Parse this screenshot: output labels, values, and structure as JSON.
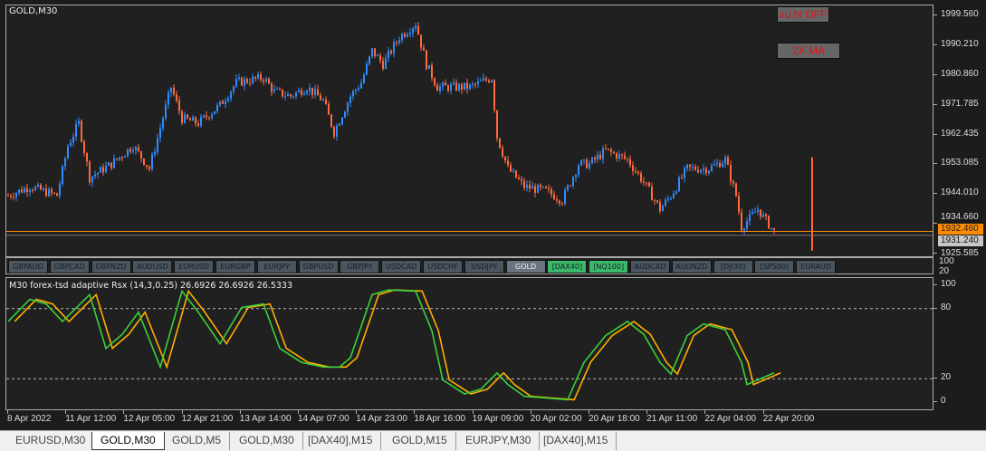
{
  "window": {
    "symbol_label": "GOLD,M30"
  },
  "controls": {
    "hl_button": "xu hl OFF",
    "ma_button": "2X MA"
  },
  "price_axis": {
    "labels": [
      "1999.560",
      "1990.210",
      "1980.860",
      "1971.785",
      "1962.435",
      "1953.085",
      "1944.010",
      "1934.660",
      "1925.585"
    ],
    "current_price": "1931.240",
    "ask_partial": "1932.460"
  },
  "symbol_buttons": [
    {
      "label": "GBPAUD",
      "active": false
    },
    {
      "label": "GBPCAD",
      "active": false
    },
    {
      "label": "GBPNZD",
      "active": false
    },
    {
      "label": "AUDUSD",
      "active": false
    },
    {
      "label": "EURUSD",
      "active": false
    },
    {
      "label": "EURGBP",
      "active": false
    },
    {
      "label": "EURJPY",
      "active": false
    },
    {
      "label": "GBPUSD",
      "active": false
    },
    {
      "label": "GBPJPY",
      "active": false
    },
    {
      "label": "USDCAD",
      "active": false
    },
    {
      "label": "USDCHF",
      "active": false
    },
    {
      "label": "USDJPY",
      "active": false
    },
    {
      "label": "GOLD",
      "active": "current"
    },
    {
      "label": "[DAX40]",
      "active": true
    },
    {
      "label": "[NQ100]",
      "active": true
    },
    {
      "label": "AUDCAD",
      "active": false
    },
    {
      "label": "AUDNZD",
      "active": false
    },
    {
      "label": "[DJI30]",
      "active": false
    },
    {
      "label": "[SP500]",
      "active": false
    },
    {
      "label": "EURAUD",
      "active": false
    }
  ],
  "button_panel_axis": {
    "top": "100",
    "bottom": "20"
  },
  "indicator": {
    "label": "M30 forex-tsd adaptive Rsx (14,3,0.25) 26.6926 26.6926 26.5333",
    "axis_labels": [
      "100",
      "80",
      "20",
      "0"
    ],
    "levels": [
      80,
      20
    ]
  },
  "time_axis": [
    "8 Apr 2022",
    "11 Apr 12:00",
    "12 Apr 05:00",
    "12 Apr 21:00",
    "13 Apr 14:00",
    "14 Apr 07:00",
    "14 Apr 23:00",
    "18 Apr 16:00",
    "19 Apr 09:00",
    "20 Apr 02:00",
    "20 Apr 18:00",
    "21 Apr 11:00",
    "22 Apr 04:00",
    "22 Apr 20:00"
  ],
  "tabs": [
    {
      "label": "EURUSD,M30",
      "active": false
    },
    {
      "label": "GOLD,M30",
      "active": true
    },
    {
      "label": "GOLD,M5",
      "active": false
    },
    {
      "label": "GOLD,M30",
      "active": false
    },
    {
      "label": "[DAX40],M15",
      "active": false
    },
    {
      "label": "GOLD,M15",
      "active": false
    },
    {
      "label": "EURJPY,M30",
      "active": false
    },
    {
      "label": "[DAX40],M15",
      "active": false
    }
  ],
  "colors": {
    "bull": "#2f8cff",
    "bear": "#ff6a3c",
    "rsx_fast": "#3ad13a",
    "rsx_slow": "#ffae00",
    "price_line": "#ff8c00",
    "button_active": "#3cb86a",
    "button_current": "#6a7480"
  },
  "chart_data": {
    "type": "candlestick",
    "ylim": [
      1925.585,
      1999.56
    ],
    "close_path": [
      [
        0,
        1943.6
      ],
      [
        4,
        1946.4
      ],
      [
        9,
        1943.6
      ],
      [
        11,
        1959.1
      ],
      [
        13,
        1966.1
      ],
      [
        15,
        1949.2
      ],
      [
        19,
        1953.4
      ],
      [
        23,
        1959.1
      ],
      [
        26,
        1952.0
      ],
      [
        30,
        1977.3
      ],
      [
        32,
        1967.5
      ],
      [
        35,
        1966.1
      ],
      [
        39,
        1971.7
      ],
      [
        42,
        1978.7
      ],
      [
        47,
        1980.2
      ],
      [
        49,
        1975.9
      ],
      [
        52,
        1974.5
      ],
      [
        55,
        1977.3
      ],
      [
        58,
        1973.1
      ],
      [
        60,
        1963.3
      ],
      [
        63,
        1974.5
      ],
      [
        65,
        1978.7
      ],
      [
        67,
        1988.6
      ],
      [
        69,
        1984.4
      ],
      [
        72,
        1992.8
      ],
      [
        75,
        1997.0
      ],
      [
        77,
        1984.4
      ],
      [
        79,
        1977.3
      ],
      [
        82,
        1977.3
      ],
      [
        85,
        1977.3
      ],
      [
        89,
        1980.2
      ],
      [
        90,
        1961.9
      ],
      [
        92,
        1952.0
      ],
      [
        95,
        1946.4
      ],
      [
        99,
        1945.0
      ],
      [
        102,
        1942.2
      ],
      [
        105,
        1953.4
      ],
      [
        107,
        1953.4
      ],
      [
        110,
        1957.6
      ],
      [
        114,
        1954.8
      ],
      [
        117,
        1947.8
      ],
      [
        120,
        1939.4
      ],
      [
        122,
        1943.6
      ],
      [
        125,
        1952.0
      ],
      [
        129,
        1952.0
      ],
      [
        132,
        1954.8
      ],
      [
        134,
        1943.6
      ],
      [
        135,
        1933.8
      ],
      [
        138,
        1939.4
      ],
      [
        141,
        1932.3
      ]
    ],
    "spike": {
      "bar": 148,
      "high": 1955.5,
      "low": 1926.5
    },
    "rsx": {
      "ylim": [
        0,
        100
      ],
      "fast": [
        [
          0,
          69
        ],
        [
          4,
          88
        ],
        [
          7,
          84
        ],
        [
          10,
          69
        ],
        [
          15,
          92
        ],
        [
          18,
          46
        ],
        [
          21,
          58
        ],
        [
          24,
          77
        ],
        [
          28,
          30
        ],
        [
          32,
          95
        ],
        [
          35,
          77
        ],
        [
          39,
          50
        ],
        [
          43,
          81
        ],
        [
          47,
          84
        ],
        [
          50,
          46
        ],
        [
          54,
          34
        ],
        [
          58,
          30
        ],
        [
          61,
          30
        ],
        [
          63,
          38
        ],
        [
          67,
          92
        ],
        [
          70,
          96
        ],
        [
          75,
          95
        ],
        [
          78,
          61
        ],
        [
          80,
          19
        ],
        [
          84,
          7
        ],
        [
          87,
          11
        ],
        [
          90,
          25
        ],
        [
          92,
          15
        ],
        [
          95,
          5
        ],
        [
          103,
          2
        ],
        [
          106,
          34
        ],
        [
          110,
          57
        ],
        [
          114,
          69
        ],
        [
          117,
          58
        ],
        [
          120,
          34
        ],
        [
          122,
          24
        ],
        [
          125,
          57
        ],
        [
          128,
          67
        ],
        [
          132,
          62
        ],
        [
          135,
          34
        ],
        [
          136,
          15
        ],
        [
          138,
          19
        ],
        [
          141,
          25
        ]
      ]
    }
  }
}
